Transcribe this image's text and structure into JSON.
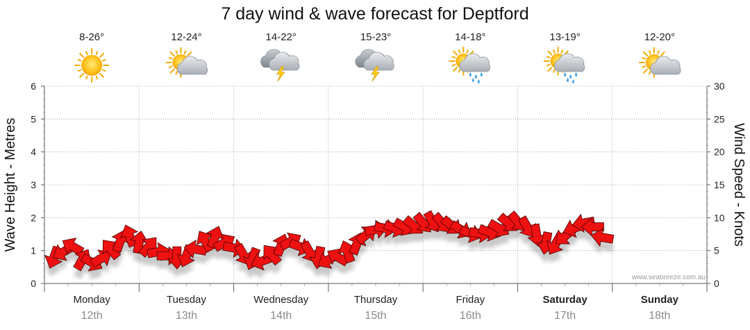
{
  "chart_data": {
    "type": "scatter",
    "title": "7 day wind & wave forecast for Deptford",
    "y_left": {
      "label": "Wave Height - Metres",
      "range": [
        0,
        6
      ],
      "ticks": [
        "0",
        "1",
        "2",
        "3",
        "4",
        "5",
        "6"
      ]
    },
    "y_right": {
      "label": "Wind Speed - Knots",
      "range": [
        0,
        30
      ],
      "ticks": [
        "0",
        "5",
        "10",
        "15",
        "20",
        "25",
        "30"
      ]
    },
    "x_days": [
      {
        "day": "Monday",
        "date": "12th",
        "temp": "8-26°",
        "icon": "sunny-icon",
        "bold": false
      },
      {
        "day": "Tuesday",
        "date": "13th",
        "temp": "12-24°",
        "icon": "partly-cloudy-icon",
        "bold": false
      },
      {
        "day": "Wednesday",
        "date": "14th",
        "temp": "14-22°",
        "icon": "thunderstorm-icon",
        "bold": false
      },
      {
        "day": "Thursday",
        "date": "15th",
        "temp": "15-23°",
        "icon": "thunderstorm-icon",
        "bold": false
      },
      {
        "day": "Friday",
        "date": "16th",
        "temp": "14-18°",
        "icon": "sun-showers-icon",
        "bold": false
      },
      {
        "day": "Saturday",
        "date": "17th",
        "temp": "13-19°",
        "icon": "sun-showers-icon",
        "bold": true
      },
      {
        "day": "Sunday",
        "date": "18th",
        "temp": "12-20°",
        "icon": "partly-cloudy-icon",
        "bold": true
      }
    ],
    "series": [
      {
        "name": "Wind speed (knots)",
        "marker": "direction-arrow",
        "color": "#ee1111",
        "points": [
          {
            "t": 0.1,
            "v": 4.0,
            "dir": 200
          },
          {
            "t": 0.2,
            "v": 4.8,
            "dir": 240
          },
          {
            "t": 0.3,
            "v": 5.6,
            "dir": 300
          },
          {
            "t": 0.4,
            "v": 3.6,
            "dir": 30
          },
          {
            "t": 0.5,
            "v": 3.2,
            "dir": 120
          },
          {
            "t": 0.6,
            "v": 3.8,
            "dir": 60
          },
          {
            "t": 0.7,
            "v": 5.2,
            "dir": 320
          },
          {
            "t": 0.8,
            "v": 6.4,
            "dir": 20
          },
          {
            "t": 0.9,
            "v": 7.2,
            "dir": 340
          },
          {
            "t": 1.0,
            "v": 6.2,
            "dir": 10
          },
          {
            "t": 1.1,
            "v": 5.6,
            "dir": 40
          },
          {
            "t": 1.2,
            "v": 4.8,
            "dir": 80
          },
          {
            "t": 1.3,
            "v": 4.2,
            "dir": 90
          },
          {
            "t": 1.4,
            "v": 4.0,
            "dir": 180
          },
          {
            "t": 1.5,
            "v": 4.2,
            "dir": 200
          },
          {
            "t": 1.6,
            "v": 5.2,
            "dir": 280
          },
          {
            "t": 1.7,
            "v": 6.4,
            "dir": 330
          },
          {
            "t": 1.8,
            "v": 7.0,
            "dir": 20
          },
          {
            "t": 1.9,
            "v": 6.2,
            "dir": 60
          },
          {
            "t": 2.0,
            "v": 5.4,
            "dir": 100
          },
          {
            "t": 2.1,
            "v": 4.4,
            "dir": 150
          },
          {
            "t": 2.2,
            "v": 3.8,
            "dir": 200
          },
          {
            "t": 2.3,
            "v": 3.4,
            "dir": 250
          },
          {
            "t": 2.4,
            "v": 4.4,
            "dir": 320
          },
          {
            "t": 2.5,
            "v": 5.8,
            "dir": 20
          },
          {
            "t": 2.6,
            "v": 6.4,
            "dir": 60
          },
          {
            "t": 2.7,
            "v": 5.6,
            "dir": 110
          },
          {
            "t": 2.8,
            "v": 4.8,
            "dir": 150
          },
          {
            "t": 2.9,
            "v": 4.0,
            "dir": 190
          },
          {
            "t": 3.0,
            "v": 3.6,
            "dir": 240
          },
          {
            "t": 3.1,
            "v": 4.0,
            "dir": 300
          },
          {
            "t": 3.2,
            "v": 4.8,
            "dir": 340
          },
          {
            "t": 3.3,
            "v": 6.0,
            "dir": 20
          },
          {
            "t": 3.4,
            "v": 7.4,
            "dir": 50
          },
          {
            "t": 3.5,
            "v": 8.2,
            "dir": 80
          },
          {
            "t": 3.6,
            "v": 8.4,
            "dir": 100
          },
          {
            "t": 3.7,
            "v": 8.4,
            "dir": 110
          },
          {
            "t": 3.8,
            "v": 8.6,
            "dir": 120
          },
          {
            "t": 3.9,
            "v": 8.8,
            "dir": 130
          },
          {
            "t": 4.0,
            "v": 9.2,
            "dir": 140
          },
          {
            "t": 4.1,
            "v": 9.4,
            "dir": 150
          },
          {
            "t": 4.2,
            "v": 9.2,
            "dir": 140
          },
          {
            "t": 4.3,
            "v": 8.8,
            "dir": 130
          },
          {
            "t": 4.4,
            "v": 8.2,
            "dir": 120
          },
          {
            "t": 4.5,
            "v": 7.6,
            "dir": 110
          },
          {
            "t": 4.6,
            "v": 7.6,
            "dir": 100
          },
          {
            "t": 4.7,
            "v": 7.8,
            "dir": 110
          },
          {
            "t": 4.8,
            "v": 8.4,
            "dir": 120
          },
          {
            "t": 4.9,
            "v": 9.2,
            "dir": 130
          },
          {
            "t": 5.0,
            "v": 9.4,
            "dir": 140
          },
          {
            "t": 5.1,
            "v": 8.6,
            "dir": 150
          },
          {
            "t": 5.2,
            "v": 7.4,
            "dir": 170
          },
          {
            "t": 5.3,
            "v": 6.2,
            "dir": 190
          },
          {
            "t": 5.4,
            "v": 6.0,
            "dir": 210
          },
          {
            "t": 5.5,
            "v": 7.2,
            "dir": 230
          },
          {
            "t": 5.6,
            "v": 8.4,
            "dir": 250
          },
          {
            "t": 5.7,
            "v": 9.2,
            "dir": 260
          },
          {
            "t": 5.8,
            "v": 8.6,
            "dir": 270
          },
          {
            "t": 5.9,
            "v": 7.0,
            "dir": 280
          }
        ]
      }
    ],
    "annotation": "www.seabreeze.com.au"
  }
}
